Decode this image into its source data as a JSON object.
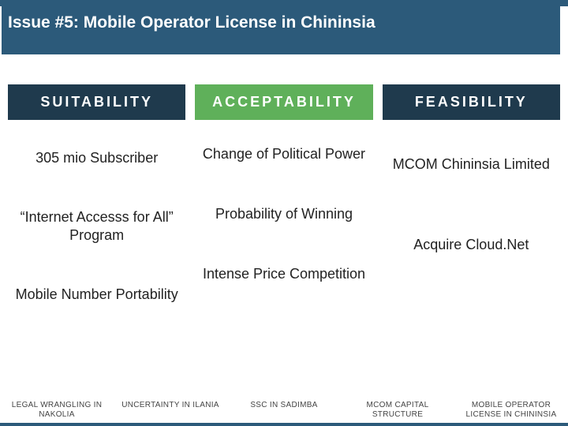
{
  "colors": {
    "brand": "#2c5a7a",
    "header_dark": "#1f3a4d",
    "header_green": "#5fb05a",
    "text": "#222222",
    "footer_text": "#444444",
    "background": "#ffffff"
  },
  "title": "Issue #5: Mobile Operator License in Chininsia",
  "columns": {
    "suitability": {
      "header": "SUITABILITY",
      "items": [
        "305 mio Subscriber",
        "“Internet Accesss for All” Program",
        "Mobile Number Portability"
      ]
    },
    "acceptability": {
      "header": "ACCEPTABILITY",
      "items": [
        "Change of Political Power",
        "Probability of Winning",
        "Intense Price Competition"
      ]
    },
    "feasibility": {
      "header": "FEASIBILITY",
      "items": [
        "MCOM Chininsia Limited",
        "Acquire Cloud.Net"
      ]
    }
  },
  "footer_tabs": [
    "LEGAL WRANGLING IN NAKOLIA",
    "UNCERTAINTY IN ILANIA",
    "SSC IN SADIMBA",
    "MCOM CAPITAL STRUCTURE",
    "MOBILE OPERATOR LICENSE IN CHININSIA"
  ]
}
